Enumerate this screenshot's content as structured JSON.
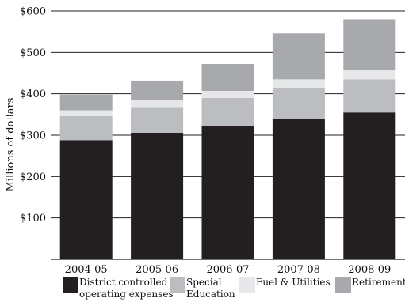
{
  "chart_data": {
    "type": "bar",
    "stacked": true,
    "categories": [
      "2004-05",
      "2005-06",
      "2006-07",
      "2007-08",
      "2008-09"
    ],
    "series": [
      {
        "name": "District controlled operating expenses",
        "legend_lines": [
          "District controlled",
          "operating expenses"
        ],
        "color": "#231f20",
        "values": [
          288,
          306,
          323,
          340,
          355
        ]
      },
      {
        "name": "Special Education",
        "legend_lines": [
          "Special",
          "Education"
        ],
        "color": "#bcbdc0",
        "values": [
          58,
          62,
          67,
          75,
          80
        ]
      },
      {
        "name": "Fuel & Utilities",
        "legend_lines": [
          "Fuel & Utilities"
        ],
        "color": "#e6e7e8",
        "values": [
          14,
          16,
          17,
          20,
          23
        ]
      },
      {
        "name": "Retirement",
        "legend_lines": [
          "Retirement"
        ],
        "color": "#a7a9ac",
        "values": [
          38,
          48,
          65,
          111,
          122
        ]
      }
    ],
    "ylabel": "Millions of dollars",
    "xlabel": "",
    "ylim": [
      0,
      600
    ],
    "yticks": [
      100,
      200,
      300,
      400,
      500,
      600
    ],
    "ytick_labels": [
      "$100",
      "$200",
      "$300",
      "$400",
      "$500",
      "$600"
    ],
    "grid": "horizontal",
    "legend_position": "bottom"
  }
}
